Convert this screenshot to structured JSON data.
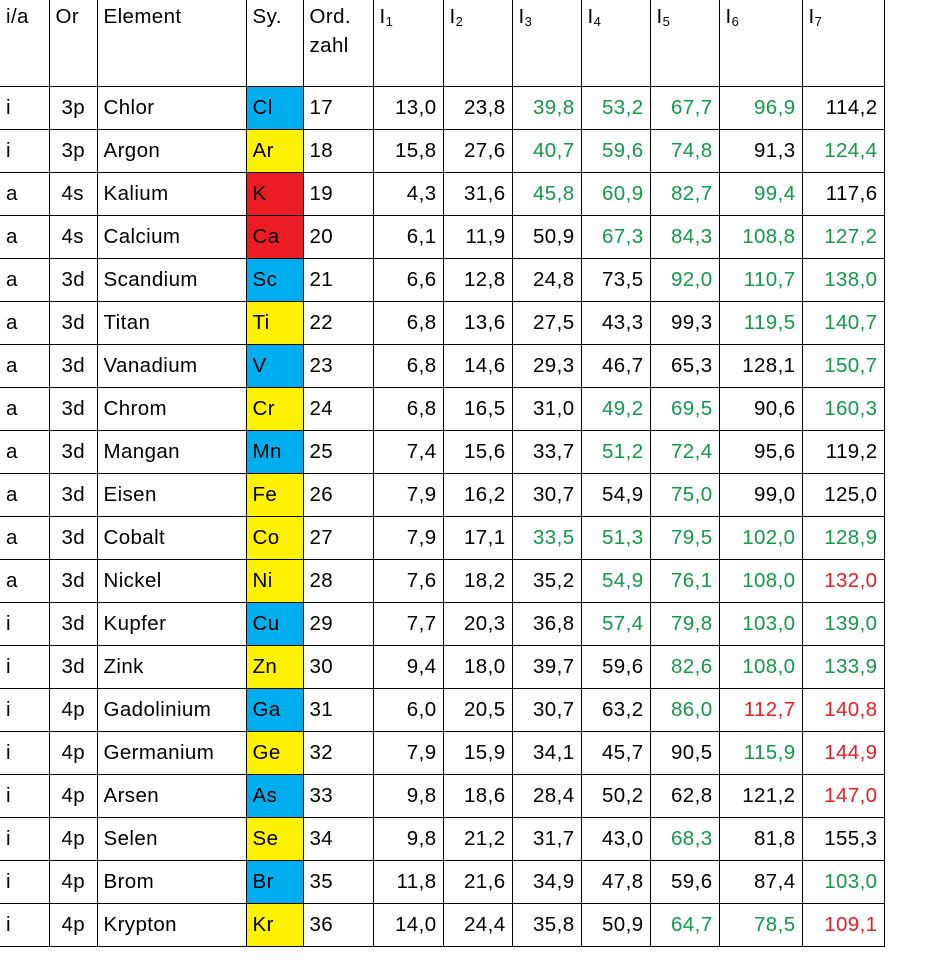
{
  "headers": {
    "ia": "i/a",
    "or": "Or",
    "element": "Element",
    "sym": "Sy.",
    "ord_line1": "Ord.",
    "ord_line2": "zahl",
    "ion_base": "I",
    "ion_subs": [
      "1",
      "2",
      "3",
      "4",
      "5",
      "6",
      "7"
    ]
  },
  "colors": {
    "green": "#119a48",
    "red": "#ed1c24",
    "blue_cell": "#00aeef",
    "yellow_cell": "#fff200",
    "red_cell": "#ed1c24"
  },
  "rows": [
    {
      "ia": "i",
      "or": "3p",
      "element": "Chlor",
      "sym": "Cl",
      "sym_bg": "blue",
      "z": "17",
      "vals": [
        "13,0",
        "23,8",
        "39,8",
        "53,2",
        "67,7",
        "96,9",
        "114,2"
      ],
      "colors": [
        "black",
        "black",
        "green",
        "green",
        "green",
        "green",
        "black"
      ]
    },
    {
      "ia": "i",
      "or": "3p",
      "element": "Argon",
      "sym": "Ar",
      "sym_bg": "yellow",
      "z": "18",
      "vals": [
        "15,8",
        "27,6",
        "40,7",
        "59,6",
        "74,8",
        "91,3",
        "124,4"
      ],
      "colors": [
        "black",
        "black",
        "green",
        "green",
        "green",
        "black",
        "green"
      ]
    },
    {
      "ia": "a",
      "or": "4s",
      "element": "Kalium",
      "sym": "K",
      "sym_bg": "red",
      "z": "19",
      "vals": [
        "4,3",
        "31,6",
        "45,8",
        "60,9",
        "82,7",
        "99,4",
        "117,6"
      ],
      "colors": [
        "black",
        "black",
        "green",
        "green",
        "green",
        "green",
        "black"
      ]
    },
    {
      "ia": "a",
      "or": "4s",
      "element": "Calcium",
      "sym": "Ca",
      "sym_bg": "red",
      "z": "20",
      "vals": [
        "6,1",
        "11,9",
        "50,9",
        "67,3",
        "84,3",
        "108,8",
        "127,2"
      ],
      "colors": [
        "black",
        "black",
        "black",
        "green",
        "green",
        "green",
        "green"
      ]
    },
    {
      "ia": "a",
      "or": "3d",
      "element": "Scandium",
      "sym": "Sc",
      "sym_bg": "blue",
      "z": "21",
      "vals": [
        "6,6",
        "12,8",
        "24,8",
        "73,5",
        "92,0",
        "110,7",
        "138,0"
      ],
      "colors": [
        "black",
        "black",
        "black",
        "black",
        "green",
        "green",
        "green"
      ]
    },
    {
      "ia": "a",
      "or": "3d",
      "element": "Titan",
      "sym": "Ti",
      "sym_bg": "yellow",
      "z": "22",
      "vals": [
        "6,8",
        "13,6",
        "27,5",
        "43,3",
        "99,3",
        "119,5",
        "140,7"
      ],
      "colors": [
        "black",
        "black",
        "black",
        "black",
        "black",
        "green",
        "green"
      ]
    },
    {
      "ia": "a",
      "or": "3d",
      "element": "Vanadium",
      "sym": "V",
      "sym_bg": "blue",
      "z": "23",
      "vals": [
        "6,8",
        "14,6",
        "29,3",
        "46,7",
        "65,3",
        "128,1",
        "150,7"
      ],
      "colors": [
        "black",
        "black",
        "black",
        "black",
        "black",
        "black",
        "green"
      ]
    },
    {
      "ia": "a",
      "or": "3d",
      "element": "Chrom",
      "sym": "Cr",
      "sym_bg": "yellow",
      "z": "24",
      "vals": [
        "6,8",
        "16,5",
        "31,0",
        "49,2",
        "69,5",
        "90,6",
        "160,3"
      ],
      "colors": [
        "black",
        "black",
        "black",
        "green",
        "green",
        "black",
        "green"
      ]
    },
    {
      "ia": "a",
      "or": "3d",
      "element": "Mangan",
      "sym": "Mn",
      "sym_bg": "blue",
      "z": "25",
      "vals": [
        "7,4",
        "15,6",
        "33,7",
        "51,2",
        "72,4",
        "95,6",
        "119,2"
      ],
      "colors": [
        "black",
        "black",
        "black",
        "green",
        "green",
        "black",
        "black"
      ]
    },
    {
      "ia": "a",
      "or": "3d",
      "element": "Eisen",
      "sym": "Fe",
      "sym_bg": "yellow",
      "z": "26",
      "vals": [
        "7,9",
        "16,2",
        "30,7",
        "54,9",
        "75,0",
        "99,0",
        "125,0"
      ],
      "colors": [
        "black",
        "black",
        "black",
        "black",
        "green",
        "black",
        "black"
      ]
    },
    {
      "ia": "a",
      "or": "3d",
      "element": "Cobalt",
      "sym": "Co",
      "sym_bg": "yellow",
      "z": "27",
      "vals": [
        "7,9",
        "17,1",
        "33,5",
        "51,3",
        "79,5",
        "102,0",
        "128,9"
      ],
      "colors": [
        "black",
        "black",
        "green",
        "green",
        "green",
        "green",
        "green"
      ]
    },
    {
      "ia": "a",
      "or": "3d",
      "element": "Nickel",
      "sym": "Ni",
      "sym_bg": "yellow",
      "z": "28",
      "vals": [
        "7,6",
        "18,2",
        "35,2",
        "54,9",
        "76,1",
        "108,0",
        "132,0"
      ],
      "colors": [
        "black",
        "black",
        "black",
        "green",
        "green",
        "green",
        "red"
      ]
    },
    {
      "ia": "i",
      "or": "3d",
      "element": "Kupfer",
      "sym": "Cu",
      "sym_bg": "blue",
      "z": "29",
      "vals": [
        "7,7",
        "20,3",
        "36,8",
        "57,4",
        "79,8",
        "103,0",
        "139,0"
      ],
      "colors": [
        "black",
        "black",
        "black",
        "green",
        "green",
        "green",
        "green"
      ]
    },
    {
      "ia": "i",
      "or": "3d",
      "element": "Zink",
      "sym": "Zn",
      "sym_bg": "yellow",
      "z": "30",
      "vals": [
        "9,4",
        "18,0",
        "39,7",
        "59,6",
        "82,6",
        "108,0",
        "133,9"
      ],
      "colors": [
        "black",
        "black",
        "black",
        "black",
        "green",
        "green",
        "green"
      ]
    },
    {
      "ia": "i",
      "or": "4p",
      "element": "Gadolinium",
      "sym": "Ga",
      "sym_bg": "blue",
      "z": "31",
      "vals": [
        "6,0",
        "20,5",
        "30,7",
        "63,2",
        "86,0",
        "112,7",
        "140,8"
      ],
      "colors": [
        "black",
        "black",
        "black",
        "black",
        "green",
        "red",
        "red"
      ]
    },
    {
      "ia": "i",
      "or": "4p",
      "element": "Germanium",
      "sym": "Ge",
      "sym_bg": "yellow",
      "z": "32",
      "vals": [
        "7,9",
        "15,9",
        "34,1",
        "45,7",
        "90,5",
        "115,9",
        "144,9"
      ],
      "colors": [
        "black",
        "black",
        "black",
        "black",
        "black",
        "green",
        "red"
      ]
    },
    {
      "ia": "i",
      "or": "4p",
      "element": "Arsen",
      "sym": "As",
      "sym_bg": "blue",
      "z": "33",
      "vals": [
        "9,8",
        "18,6",
        "28,4",
        "50,2",
        "62,8",
        "121,2",
        "147,0"
      ],
      "colors": [
        "black",
        "black",
        "black",
        "black",
        "black",
        "black",
        "red"
      ]
    },
    {
      "ia": "i",
      "or": "4p",
      "element": "Selen",
      "sym": "Se",
      "sym_bg": "yellow",
      "z": "34",
      "vals": [
        "9,8",
        "21,2",
        "31,7",
        "43,0",
        "68,3",
        "81,8",
        "155,3"
      ],
      "colors": [
        "black",
        "black",
        "black",
        "black",
        "green",
        "black",
        "black"
      ]
    },
    {
      "ia": "i",
      "or": "4p",
      "element": "Brom",
      "sym": "Br",
      "sym_bg": "blue",
      "z": "35",
      "vals": [
        "11,8",
        "21,6",
        "34,9",
        "47,8",
        "59,6",
        "87,4",
        "103,0"
      ],
      "colors": [
        "black",
        "black",
        "black",
        "black",
        "black",
        "black",
        "green"
      ]
    },
    {
      "ia": "i",
      "or": "4p",
      "element": "Krypton",
      "sym": "Kr",
      "sym_bg": "yellow",
      "z": "36",
      "vals": [
        "14,0",
        "24,4",
        "35,8",
        "50,9",
        "64,7",
        "78,5",
        "109,1"
      ],
      "colors": [
        "black",
        "black",
        "black",
        "black",
        "green",
        "green",
        "red"
      ]
    }
  ]
}
